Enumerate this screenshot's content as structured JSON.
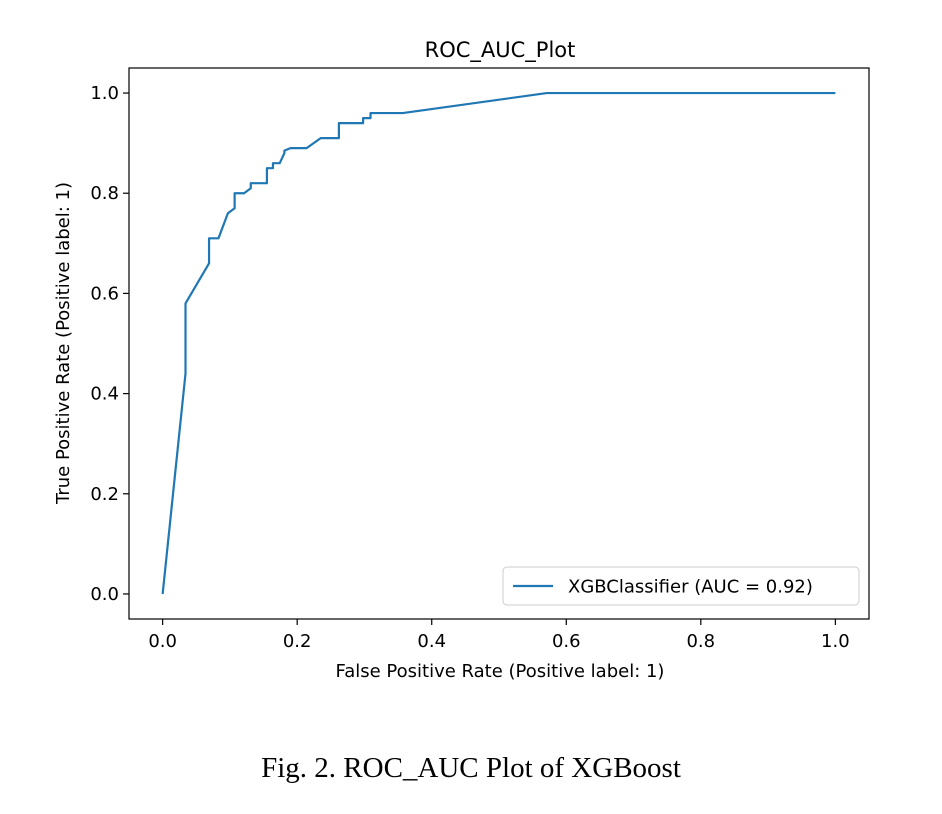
{
  "chart_data": {
    "type": "line",
    "title": "ROC_AUC_Plot",
    "xlabel": "False Positive Rate (Positive label: 1)",
    "ylabel": "True Positive Rate (Positive label: 1)",
    "xlim": [
      -0.05,
      1.05
    ],
    "ylim": [
      -0.05,
      1.05
    ],
    "xticks": [
      0.0,
      0.2,
      0.4,
      0.6,
      0.8,
      1.0
    ],
    "xtick_labels": [
      "0.0",
      "0.2",
      "0.4",
      "0.6",
      "0.8",
      "1.0"
    ],
    "yticks": [
      0.0,
      0.2,
      0.4,
      0.6,
      0.8,
      1.0
    ],
    "ytick_labels": [
      "0.0",
      "0.2",
      "0.4",
      "0.6",
      "0.8",
      "1.0"
    ],
    "grid": false,
    "legend_position": "bottom-right",
    "series": [
      {
        "name": "XGBClassifier (AUC = 0.92)",
        "color": "#1f77b4",
        "x": [
          0.0,
          0.034,
          0.034,
          0.069,
          0.069,
          0.083,
          0.097,
          0.107,
          0.107,
          0.121,
          0.131,
          0.131,
          0.155,
          0.155,
          0.164,
          0.164,
          0.174,
          0.181,
          0.181,
          0.19,
          0.214,
          0.235,
          0.262,
          0.262,
          0.298,
          0.298,
          0.309,
          0.309,
          0.357,
          0.571,
          1.0
        ],
        "y": [
          0.0,
          0.44,
          0.58,
          0.66,
          0.71,
          0.71,
          0.76,
          0.77,
          0.8,
          0.8,
          0.81,
          0.82,
          0.82,
          0.85,
          0.85,
          0.86,
          0.86,
          0.88,
          0.885,
          0.89,
          0.89,
          0.91,
          0.91,
          0.94,
          0.94,
          0.95,
          0.95,
          0.96,
          0.96,
          1.0,
          1.0
        ]
      }
    ]
  },
  "caption": "Fig. 2. ROC_AUC Plot of XGBoost"
}
